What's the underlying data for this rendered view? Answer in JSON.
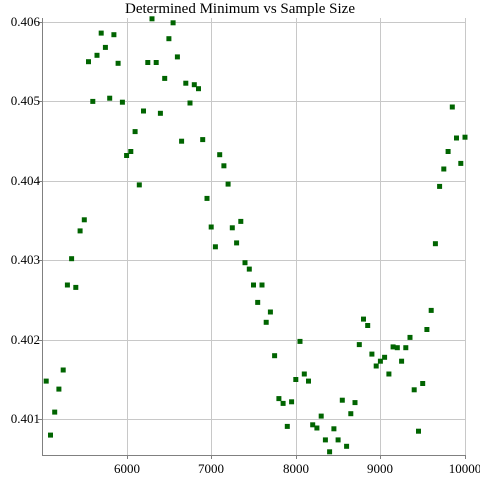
{
  "chart_data": {
    "type": "scatter",
    "title": "Determined Minimum vs Sample Size",
    "xlabel": "",
    "ylabel": "",
    "xlim": [
      5000,
      10000
    ],
    "ylim": [
      0.40055,
      0.40605
    ],
    "x_ticks": [
      6000,
      7000,
      8000,
      9000,
      10000
    ],
    "x_tick_labels": [
      "6000",
      "7000",
      "8000",
      "9000",
      "10000"
    ],
    "y_ticks": [
      0.401,
      0.402,
      0.403,
      0.404,
      0.405,
      0.406
    ],
    "y_tick_labels": [
      "0.401",
      "0.402",
      "0.403",
      "0.404",
      "0.405",
      "0.406"
    ],
    "grid": true,
    "marker_color": "#006400",
    "series": [
      {
        "x": [
          5050,
          5100,
          5150,
          5200,
          5250,
          5300,
          5350,
          5400,
          5450,
          5500,
          5550,
          5600,
          5650,
          5700,
          5750,
          5800,
          5850,
          5900,
          5950,
          6000,
          6050,
          6100,
          6150,
          6200,
          6250,
          6300,
          6350,
          6400,
          6450,
          6500,
          6550,
          6600,
          6650,
          6700,
          6750,
          6800,
          6850,
          6900,
          6950,
          7000,
          7050,
          7100,
          7150,
          7200,
          7250,
          7300,
          7350,
          7400,
          7450,
          7500,
          7550,
          7600,
          7650,
          7700,
          7750,
          7800,
          7850,
          7900,
          7950,
          8000,
          8050,
          8100,
          8150,
          8200,
          8250,
          8300,
          8350,
          8400,
          8450,
          8500,
          8550,
          8600,
          8650,
          8700,
          8750,
          8800,
          8850,
          8900,
          8950,
          9000,
          9050,
          9100,
          9150,
          9200,
          9250,
          9300,
          9350,
          9400,
          9450,
          9500,
          9550,
          9600,
          9650,
          9700,
          9750,
          9800,
          9850,
          9900,
          9950,
          10000
        ],
        "y": [
          0.40148,
          0.4008,
          0.40109,
          0.40138,
          0.40162,
          0.40269,
          0.40302,
          0.40266,
          0.40337,
          0.40351,
          0.4055,
          0.405,
          0.40558,
          0.40586,
          0.40568,
          0.40504,
          0.40584,
          0.40548,
          0.40499,
          0.40432,
          0.40437,
          0.40462,
          0.40395,
          0.40488,
          0.40549,
          0.40604,
          0.40549,
          0.40485,
          0.40529,
          0.40579,
          0.40599,
          0.40556,
          0.4045,
          0.40523,
          0.40498,
          0.40521,
          0.40516,
          0.40452,
          0.40378,
          0.40342,
          0.40317,
          0.40433,
          0.40419,
          0.40396,
          0.40341,
          0.40322,
          0.40349,
          0.40297,
          0.40289,
          0.40269,
          0.40247,
          0.40269,
          0.40222,
          0.40235,
          0.4018,
          0.40126,
          0.4012,
          0.40091,
          0.40122,
          0.4015,
          0.40198,
          0.40157,
          0.40148,
          0.40093,
          0.40089,
          0.40104,
          0.40074,
          0.40059,
          0.40088,
          0.40074,
          0.40124,
          0.40066,
          0.40107,
          0.40121,
          0.40194,
          0.40226,
          0.40218,
          0.40182,
          0.40167,
          0.40173,
          0.40178,
          0.40157,
          0.40191,
          0.4019,
          0.40173,
          0.4019,
          0.40203,
          0.40137,
          0.40085,
          0.40145,
          0.40213,
          0.40237,
          0.40321,
          0.40393,
          0.40415,
          0.40437,
          0.40493,
          0.40454,
          0.40422,
          0.40455
        ]
      }
    ]
  }
}
